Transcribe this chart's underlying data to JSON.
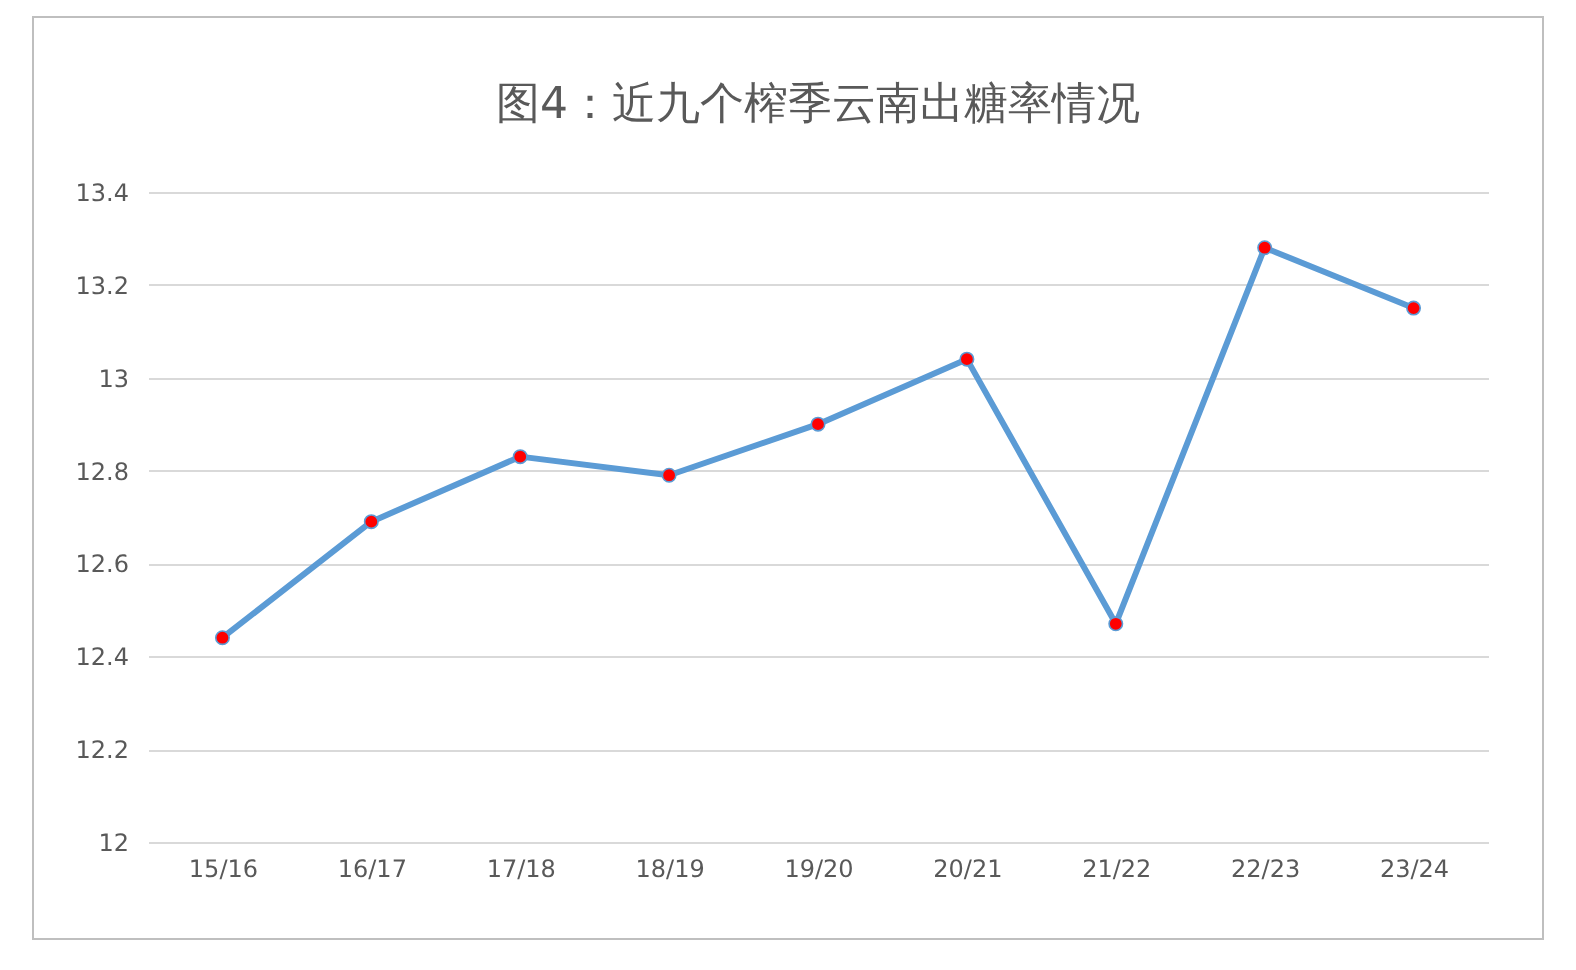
{
  "chart_data": {
    "type": "line",
    "title": "图4：近九个榨季云南出糖率情况",
    "categories": [
      "15/16",
      "16/17",
      "17/18",
      "18/19",
      "19/20",
      "20/21",
      "21/22",
      "22/23",
      "23/24"
    ],
    "series": [
      {
        "color": "#5b9bd5",
        "values": [
          12.44,
          12.69,
          12.83,
          12.79,
          12.9,
          13.04,
          12.47,
          13.28,
          13.15
        ]
      }
    ],
    "ylim": [
      12,
      13.4
    ],
    "yticks": [
      12,
      12.2,
      12.4,
      12.6,
      12.8,
      13,
      13.2,
      13.4
    ],
    "grid": "y",
    "marker": "circle",
    "line_style": "solid"
  }
}
